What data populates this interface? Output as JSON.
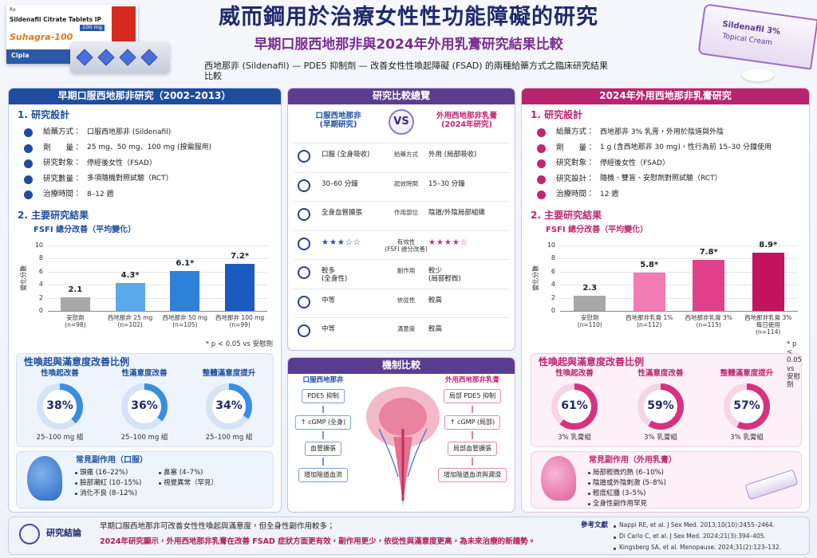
{
  "header": {
    "title": "威而鋼用於治療女性性功能障礙的研究",
    "subtitle": "早期口服西地那非與2024年外用乳膏研究結果比較",
    "description": "西地那非 (Sildenafil) — PDE5 抑制劑 — 改善女性性喚起障礙 (FSAD) 的兩種給藥方式之臨床研究結果比較"
  },
  "products": {
    "tablet_box": {
      "rx": "Rx",
      "name": "Sildenafil Citrate Tablets IP",
      "strength": "100 mg",
      "brand": "Suhagra-100",
      "maker": "Cipla"
    },
    "cream_tube": {
      "name": "Sildenafil 3%",
      "form": "Topical Cream"
    }
  },
  "oral_study": {
    "title": "早期口服西地那非研究（2002–2013）",
    "design_heading": "1. 研究設計",
    "design": [
      {
        "label": "給藥方式：",
        "value": "口服西地那非 (Sildenafil)"
      },
      {
        "label": "劑　　量：",
        "value": "25 mg、50 mg、100 mg (按需服用)"
      },
      {
        "label": "研究對象：",
        "value": "停經後女性（FSAD）"
      },
      {
        "label": "研究數量：",
        "value": "多項隨機對照試驗（RCT）"
      },
      {
        "label": "治療時間：",
        "value": "8–12 週"
      }
    ],
    "results_heading": "2. 主要研究結果",
    "footnote": "* p < 0.05 vs 安慰劑",
    "side_effects": {
      "title": "常見副作用（口服）",
      "items": [
        "頭痛 (16–22%)",
        "臉部潮紅 (10–15%)",
        "消化不良 (8–12%)",
        "鼻塞 (4–7%)",
        "視覺異常（罕見）"
      ]
    }
  },
  "cream_study": {
    "title": "2024年外用西地那非乳膏研究",
    "design_heading": "1. 研究設計",
    "design": [
      {
        "label": "給藥方式：",
        "value": "西地那非 3% 乳膏，外用於陰道與外陰"
      },
      {
        "label": "劑　　量：",
        "value": "1 g (含西地那非 30 mg)，性行為前 15–30 分鐘使用"
      },
      {
        "label": "研究對象：",
        "value": "停經後女性（FSAD）"
      },
      {
        "label": "研究設計：",
        "value": "隨機、雙盲、安慰劑對照試驗（RCT）"
      },
      {
        "label": "治療時間：",
        "value": "12 週"
      }
    ],
    "results_heading": "2. 主要研究結果",
    "footnote": "* p < 0.05 vs 安慰劑",
    "side_effects": {
      "title": "常見副作用（外用乳膏）",
      "items": [
        "局部輕微灼熱 (6–10%)",
        "陰道或外陰刺激 (5–8%)",
        "輕度紅腫 (3–5%)",
        "全身性副作用罕見"
      ]
    }
  },
  "overview": {
    "title": "研究比較總覽",
    "left_head": "口服西地那非\n(早期研究)",
    "vs": "VS",
    "right_head": "外用西地那非乳膏\n(2024年研究)",
    "rows": [
      {
        "left": "口服 (全身吸收)",
        "label": "給藥方式",
        "right": "外用 (局部吸收)"
      },
      {
        "left": "30–60 分鐘",
        "label": "起效時間",
        "right": "15–30 分鐘"
      },
      {
        "left": "全身血管擴張",
        "label": "作用部位",
        "right": "陰道/外陰局部組織"
      },
      {
        "left": "★★★☆☆",
        "label": "有效性\n(FSFI 總分改善)",
        "right": "★★★★☆"
      },
      {
        "left": "較多\n(全身性)",
        "label": "副作用",
        "right": "較少\n(局部輕微)"
      },
      {
        "left": "中等",
        "label": "依從性",
        "right": "較高"
      },
      {
        "left": "中等",
        "label": "滿意度",
        "right": "較高"
      }
    ]
  },
  "mechanism": {
    "title": "機制比較",
    "oral": {
      "title": "口服西地那非",
      "steps": [
        "PDE5 抑制",
        "↑ cGMP (全身)",
        "血管擴張",
        "增加陰道血流"
      ]
    },
    "cream": {
      "title": "外用西地那非乳膏",
      "steps": [
        "局部 PDE5 抑制",
        "↑ cGMP (局部)",
        "局部血管擴張",
        "增加陰道血流與潤滑"
      ]
    }
  },
  "conclusion": {
    "title": "研究結論",
    "lines": [
      "早期口服西地那非可改善女性性喚起與滿意度，但全身性副作用較多；",
      "2024年研究顯示，外用西地那非乳膏在改善 FSAD 症狀方面更有效，副作用更少，依從性與滿意度更高，為未來治療的新趨勢。"
    ],
    "references_title": "參考文獻",
    "references": [
      "Nappi RE, et al. J Sex Med. 2013;10(10):2455–2464.",
      "Di Carlo C, et al. J Sex Med. 2024;21(3):394–405.",
      "Kingsberg SA, et al. Menopause. 2024;31(2):123–132."
    ]
  },
  "chart_data": [
    {
      "type": "bar",
      "title": "FSFI 總分改善（平均變化）",
      "y_label": "變化分數",
      "categories": [
        "安慰劑",
        "西地那非 25 mg",
        "西地那非 50 mg",
        "西地那非 100 mg"
      ],
      "sample_sizes": [
        "(n=98)",
        "(n=102)",
        "(n=105)",
        "(n=99)"
      ],
      "values": [
        2.1,
        4.3,
        6.1,
        7.2
      ],
      "value_labels": [
        "2.1",
        "4.3*",
        "6.1*",
        "7.2*"
      ],
      "colors": [
        "#a8a8a8",
        "#5aa9ea",
        "#2f80d8",
        "#1b5bbf"
      ],
      "ylim": [
        0,
        10
      ],
      "yticks": [
        0,
        2,
        4,
        6,
        8,
        10
      ],
      "grid": true
    },
    {
      "type": "donut",
      "title": "性喚起與滿意度改善比例",
      "categories": [
        "性喚起改善",
        "性滿意度改善",
        "整體滿意度提升"
      ],
      "values": [
        38,
        36,
        34
      ],
      "value_labels": [
        "38%",
        "36%",
        "34%"
      ],
      "group_labels": [
        "25–100 mg 組",
        "25–100 mg 組",
        "25–100 mg 組"
      ],
      "color": "#3a8ee0",
      "ylim": [
        0,
        100
      ]
    },
    {
      "type": "bar",
      "title": "FSFI 總分改善（平均變化）",
      "y_label": "變化分數",
      "categories": [
        "安慰劑",
        "西地那非乳膏 1%",
        "西地那非乳膏 3%",
        "西地那非乳膏 3%\n每日使用"
      ],
      "sample_sizes": [
        "(n=110)",
        "(n=112)",
        "(n=115)",
        "(n=114)"
      ],
      "values": [
        2.3,
        5.8,
        7.8,
        8.9
      ],
      "value_labels": [
        "2.3",
        "5.8*",
        "7.8*",
        "8.9*"
      ],
      "colors": [
        "#a8a8a8",
        "#f47bb3",
        "#e0418a",
        "#c4125f"
      ],
      "ylim": [
        0,
        10
      ],
      "yticks": [
        0,
        2,
        4,
        6,
        8,
        10
      ],
      "grid": true
    },
    {
      "type": "donut",
      "title": "性喚起與滿意度改善比例",
      "categories": [
        "性喚起改善",
        "性滿意度改善",
        "整體滿意度提升"
      ],
      "values": [
        61,
        59,
        57
      ],
      "value_labels": [
        "61%",
        "59%",
        "57%"
      ],
      "group_labels": [
        "3% 乳膏組",
        "3% 乳膏組",
        "3% 乳膏組"
      ],
      "color": "#d6337f",
      "ylim": [
        0,
        100
      ]
    }
  ]
}
